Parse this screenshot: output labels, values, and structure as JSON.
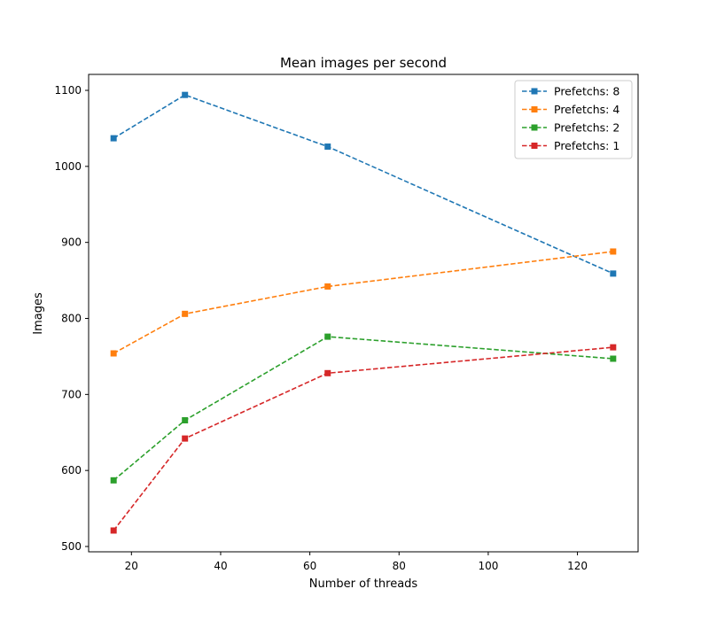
{
  "chart_data": {
    "type": "line",
    "title": "Mean images per second",
    "xlabel": "Number of threads",
    "ylabel": "Images",
    "xlim": [
      10.4,
      133.6
    ],
    "ylim": [
      493,
      1121
    ],
    "xticks": [
      20,
      40,
      60,
      80,
      100,
      120
    ],
    "yticks": [
      500,
      600,
      700,
      800,
      900,
      1000,
      1100
    ],
    "x": [
      16,
      32,
      64,
      128
    ],
    "grid": false,
    "legend_position": "top-right",
    "series": [
      {
        "name": "Prefetchs: 8",
        "color": "#1f77b4",
        "values": [
          1037,
          1094,
          1026,
          859
        ]
      },
      {
        "name": "Prefetchs: 4",
        "color": "#ff7f0e",
        "values": [
          754,
          806,
          842,
          888
        ]
      },
      {
        "name": "Prefetchs: 2",
        "color": "#2ca02c",
        "values": [
          587,
          666,
          776,
          747
        ]
      },
      {
        "name": "Prefetchs: 1",
        "color": "#d62728",
        "values": [
          521,
          642,
          728,
          762
        ]
      }
    ]
  }
}
